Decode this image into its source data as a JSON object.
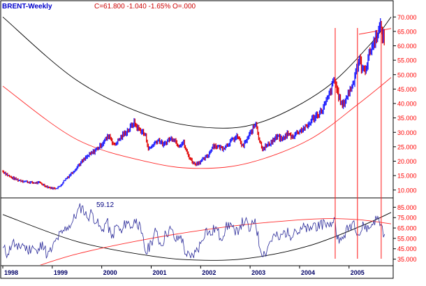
{
  "header": {
    "symbol": "BRENT-Weekly",
    "quote": "C=61.800  -1.040  -1.65%  O=.000"
  },
  "rsi_label": "59.12",
  "colors": {
    "up_bar": "#1a1aff",
    "down_bar": "#e00000",
    "black_arc": "#000000",
    "red_line": "#ff2a2a",
    "rsi_line": "#2b2b9a",
    "axis_text": "#ff0000",
    "header_symbol": "#0000cc",
    "header_quote": "#cc0000",
    "year_text": "#000066"
  },
  "chart_data": [
    {
      "type": "line",
      "title": "",
      "subtitle": "",
      "xlabel": "",
      "ylabel": "",
      "x_ticks": [
        "1998",
        "1999",
        "2000",
        "2001",
        "2002",
        "2003",
        "2004",
        "2005"
      ],
      "x_range": [
        1998.0,
        2005.85
      ],
      "y_ticks": [
        "10.000",
        "15.000",
        "20.000",
        "25.000",
        "30.000",
        "35.000",
        "40.000",
        "45.000",
        "50.000",
        "55.000",
        "60.000",
        "65.000",
        "70.000"
      ],
      "ylim": [
        8,
        72
      ],
      "grid": false,
      "legend": "none",
      "price_points": [
        [
          1998.0,
          16.5
        ],
        [
          1998.15,
          14.5
        ],
        [
          1998.3,
          13.5
        ],
        [
          1998.45,
          13.0
        ],
        [
          1998.6,
          12.5
        ],
        [
          1998.75,
          12.5
        ],
        [
          1998.85,
          11.5
        ],
        [
          1998.95,
          10.8
        ],
        [
          1999.05,
          10.5
        ],
        [
          1999.15,
          11.2
        ],
        [
          1999.25,
          13.5
        ],
        [
          1999.4,
          16.0
        ],
        [
          1999.55,
          19.0
        ],
        [
          1999.7,
          21.5
        ],
        [
          1999.85,
          23.5
        ],
        [
          1999.95,
          25.0
        ],
        [
          2000.05,
          27.0
        ],
        [
          2000.15,
          29.0
        ],
        [
          2000.25,
          25.5
        ],
        [
          2000.35,
          27.5
        ],
        [
          2000.45,
          29.5
        ],
        [
          2000.55,
          31.0
        ],
        [
          2000.65,
          33.5
        ],
        [
          2000.72,
          31.5
        ],
        [
          2000.8,
          30.5
        ],
        [
          2000.88,
          29.0
        ],
        [
          2000.95,
          24.0
        ],
        [
          2001.05,
          26.0
        ],
        [
          2001.15,
          27.5
        ],
        [
          2001.25,
          25.5
        ],
        [
          2001.35,
          27.5
        ],
        [
          2001.45,
          28.0
        ],
        [
          2001.55,
          25.5
        ],
        [
          2001.65,
          26.5
        ],
        [
          2001.72,
          23.0
        ],
        [
          2001.8,
          20.5
        ],
        [
          2001.88,
          19.0
        ],
        [
          2001.95,
          19.5
        ],
        [
          2002.05,
          20.5
        ],
        [
          2002.15,
          22.0
        ],
        [
          2002.25,
          25.5
        ],
        [
          2002.35,
          25.0
        ],
        [
          2002.45,
          24.5
        ],
        [
          2002.55,
          26.0
        ],
        [
          2002.65,
          27.5
        ],
        [
          2002.75,
          28.5
        ],
        [
          2002.85,
          25.0
        ],
        [
          2002.95,
          28.0
        ],
        [
          2003.05,
          31.0
        ],
        [
          2003.12,
          33.5
        ],
        [
          2003.18,
          27.5
        ],
        [
          2003.25,
          24.5
        ],
        [
          2003.35,
          25.5
        ],
        [
          2003.45,
          27.0
        ],
        [
          2003.55,
          28.5
        ],
        [
          2003.65,
          27.5
        ],
        [
          2003.75,
          29.5
        ],
        [
          2003.85,
          28.5
        ],
        [
          2003.95,
          30.0
        ],
        [
          2004.05,
          31.0
        ],
        [
          2004.15,
          32.0
        ],
        [
          2004.25,
          34.5
        ],
        [
          2004.35,
          36.0
        ],
        [
          2004.45,
          37.5
        ],
        [
          2004.55,
          41.0
        ],
        [
          2004.62,
          44.0
        ],
        [
          2004.7,
          48.5
        ],
        [
          2004.75,
          45.0
        ],
        [
          2004.82,
          41.0
        ],
        [
          2004.87,
          39.0
        ],
        [
          2004.93,
          41.5
        ],
        [
          2005.0,
          44.0
        ],
        [
          2005.08,
          47.0
        ],
        [
          2005.14,
          52.0
        ],
        [
          2005.22,
          55.0
        ],
        [
          2005.28,
          51.0
        ],
        [
          2005.35,
          53.0
        ],
        [
          2005.42,
          58.0
        ],
        [
          2005.5,
          61.0
        ],
        [
          2005.57,
          64.5
        ],
        [
          2005.63,
          66.5
        ],
        [
          2005.68,
          63.5
        ],
        [
          2005.72,
          61.8
        ]
      ],
      "arcs": [
        {
          "name": "",
          "color": "black",
          "points": [
            [
              1998.0,
              70.0
            ],
            [
              1999.5,
              48.0
            ],
            [
              2001.0,
              35.5
            ],
            [
              2002.3,
              31.5
            ],
            [
              2003.3,
              34.0
            ],
            [
              2004.5,
              45.0
            ],
            [
              2005.4,
              60.0
            ],
            [
              2005.85,
              70.0
            ]
          ]
        },
        {
          "name": "",
          "color": "red",
          "points": [
            [
              1998.0,
              46.0
            ],
            [
              1999.5,
              27.5
            ],
            [
              2001.0,
              19.5
            ],
            [
              2002.0,
              17.5
            ],
            [
              2003.0,
              19.5
            ],
            [
              2004.2,
              27.5
            ],
            [
              2005.2,
              40.0
            ],
            [
              2005.85,
              49.0
            ]
          ]
        }
      ],
      "extra_red_line": [
        [
          2005.2,
          64.0
        ],
        [
          2005.85,
          66.0
        ]
      ],
      "vertical_markers": [
        2004.72,
        2005.17,
        2005.65
      ]
    },
    {
      "type": "line",
      "title": "",
      "xlabel": "",
      "ylabel": "",
      "y_ticks": [
        "35.000",
        "45.000",
        "55.000",
        "65.000",
        "75.000",
        "85.000"
      ],
      "ylim": [
        30,
        92
      ],
      "grid": false,
      "legend": "none",
      "last_value": 59.12,
      "rsi_points": [
        [
          1998.0,
          46
        ],
        [
          1998.1,
          40
        ],
        [
          1998.2,
          52
        ],
        [
          1998.3,
          44
        ],
        [
          1998.4,
          50
        ],
        [
          1998.5,
          43
        ],
        [
          1998.6,
          48
        ],
        [
          1998.7,
          40
        ],
        [
          1998.8,
          52
        ],
        [
          1998.9,
          38
        ],
        [
          1999.0,
          45
        ],
        [
          1999.1,
          55
        ],
        [
          1999.2,
          60
        ],
        [
          1999.3,
          66
        ],
        [
          1999.4,
          70
        ],
        [
          1999.5,
          80
        ],
        [
          1999.6,
          86
        ],
        [
          1999.7,
          75
        ],
        [
          1999.8,
          80
        ],
        [
          1999.9,
          70
        ],
        [
          2000.0,
          62
        ],
        [
          2000.1,
          72
        ],
        [
          2000.2,
          55
        ],
        [
          2000.3,
          68
        ],
        [
          2000.4,
          60
        ],
        [
          2000.5,
          72
        ],
        [
          2000.6,
          66
        ],
        [
          2000.7,
          74
        ],
        [
          2000.8,
          60
        ],
        [
          2000.9,
          40
        ],
        [
          2001.0,
          52
        ],
        [
          2001.1,
          62
        ],
        [
          2001.2,
          48
        ],
        [
          2001.3,
          60
        ],
        [
          2001.4,
          64
        ],
        [
          2001.5,
          52
        ],
        [
          2001.6,
          58
        ],
        [
          2001.7,
          40
        ],
        [
          2001.8,
          36
        ],
        [
          2001.9,
          42
        ],
        [
          2002.0,
          50
        ],
        [
          2002.1,
          64
        ],
        [
          2002.2,
          58
        ],
        [
          2002.3,
          66
        ],
        [
          2002.4,
          55
        ],
        [
          2002.5,
          64
        ],
        [
          2002.6,
          70
        ],
        [
          2002.7,
          58
        ],
        [
          2002.8,
          68
        ],
        [
          2002.9,
          72
        ],
        [
          2003.0,
          62
        ],
        [
          2003.1,
          74
        ],
        [
          2003.2,
          45
        ],
        [
          2003.3,
          40
        ],
        [
          2003.4,
          52
        ],
        [
          2003.5,
          58
        ],
        [
          2003.6,
          54
        ],
        [
          2003.7,
          62
        ],
        [
          2003.8,
          58
        ],
        [
          2003.9,
          64
        ],
        [
          2004.0,
          60
        ],
        [
          2004.1,
          66
        ],
        [
          2004.2,
          62
        ],
        [
          2004.3,
          70
        ],
        [
          2004.4,
          64
        ],
        [
          2004.5,
          72
        ],
        [
          2004.6,
          66
        ],
        [
          2004.7,
          75
        ],
        [
          2004.8,
          50
        ],
        [
          2004.9,
          58
        ],
        [
          2005.0,
          66
        ],
        [
          2005.1,
          72
        ],
        [
          2005.2,
          58
        ],
        [
          2005.3,
          68
        ],
        [
          2005.4,
          64
        ],
        [
          2005.5,
          72
        ],
        [
          2005.6,
          74
        ],
        [
          2005.72,
          59.12
        ]
      ],
      "arcs": [
        {
          "name": "",
          "color": "black",
          "points": [
            [
              1998.0,
              78
            ],
            [
              1999.5,
              52
            ],
            [
              2001.0,
              38
            ],
            [
              2002.0,
              34
            ],
            [
              2003.0,
              36
            ],
            [
              2004.2,
              48
            ],
            [
              2005.3,
              68
            ],
            [
              2005.85,
              80
            ]
          ]
        },
        {
          "name": "",
          "color": "red",
          "points": [
            [
              1998.5,
              25
            ],
            [
              1999.5,
              40
            ],
            [
              2001.0,
              55
            ],
            [
              2002.5,
              66
            ],
            [
              2003.5,
              71
            ],
            [
              2004.5,
              74
            ],
            [
              2005.2,
              73
            ],
            [
              2005.85,
              69
            ]
          ]
        }
      ]
    }
  ]
}
